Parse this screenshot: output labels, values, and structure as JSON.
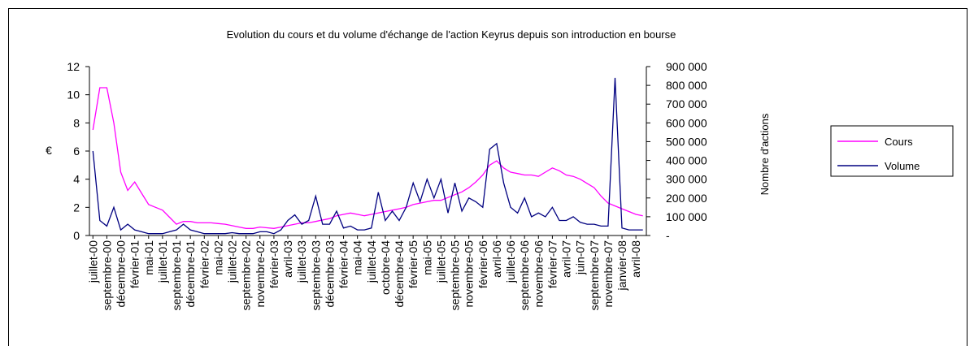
{
  "chart_data": {
    "type": "line",
    "title": "Evolution du cours et du volume d'échange de l'action Keyrus depuis son introduction en bourse",
    "y_label": "€",
    "y2_label": "Nombre d'actions",
    "categories": [
      "juillet-00",
      null,
      "septembre-00",
      null,
      "décembre-00",
      null,
      "février-01",
      null,
      "mai-01",
      null,
      "juillet-01",
      null,
      "septembre-01",
      null,
      "décembre-01",
      null,
      "février-02",
      null,
      "mai-02",
      null,
      "juillet-02",
      null,
      "septembre-02",
      null,
      "novembre-02",
      null,
      "février-03",
      null,
      "avril-03",
      null,
      "juillet-03",
      null,
      "septembre-03",
      null,
      "décembre-03",
      null,
      "février-04",
      null,
      "mai-04",
      null,
      "juillet-04",
      null,
      "octobre-04",
      null,
      "décembre-04",
      null,
      "février-05",
      null,
      "mai-05",
      null,
      "juillet-05",
      null,
      "septembre-05",
      null,
      "novembre-05",
      null,
      "février-06",
      null,
      "avril-06",
      null,
      "juillet-06",
      null,
      "septembre-06",
      null,
      "novembre-06",
      null,
      "février-07",
      null,
      "avril-07",
      null,
      "juin-07",
      null,
      "septembre-07",
      null,
      "novembre-07",
      null,
      "janvier-08",
      null,
      "avril-08",
      null
    ],
    "series": [
      {
        "name": "Cours",
        "color": "#ff00ff",
        "values": [
          7.5,
          10.5,
          10.5,
          8,
          4.5,
          3.2,
          3.8,
          3,
          2.2,
          2,
          1.8,
          1.3,
          0.8,
          1.0,
          1.0,
          0.9,
          0.9,
          0.9,
          0.85,
          0.8,
          0.7,
          0.6,
          0.5,
          0.5,
          0.6,
          0.55,
          0.5,
          0.6,
          0.7,
          0.8,
          0.9,
          0.9,
          1.0,
          1.1,
          1.2,
          1.4,
          1.5,
          1.6,
          1.5,
          1.4,
          1.5,
          1.6,
          1.7,
          1.8,
          1.9,
          2.0,
          2.2,
          2.3,
          2.4,
          2.5,
          2.5,
          2.7,
          2.9,
          3.1,
          3.4,
          3.8,
          4.3,
          5.0,
          5.3,
          4.8,
          4.5,
          4.4,
          4.3,
          4.3,
          4.2,
          4.5,
          4.8,
          4.6,
          4.3,
          4.2,
          4.0,
          3.7,
          3.4,
          2.8,
          2.3,
          2.1,
          1.9,
          1.7,
          1.5,
          1.4
        ]
      },
      {
        "name": "Volume",
        "color": "#000080",
        "axis": "y2",
        "values": [
          450000,
          80000,
          50000,
          150000,
          30000,
          60000,
          30000,
          20000,
          10000,
          10000,
          10000,
          20000,
          30000,
          60000,
          30000,
          20000,
          10000,
          10000,
          10000,
          10000,
          15000,
          10000,
          10000,
          10000,
          20000,
          20000,
          10000,
          30000,
          80000,
          110000,
          60000,
          80000,
          210000,
          60000,
          60000,
          130000,
          40000,
          50000,
          30000,
          30000,
          40000,
          230000,
          80000,
          130000,
          80000,
          150000,
          280000,
          180000,
          300000,
          200000,
          300000,
          120000,
          280000,
          130000,
          200000,
          180000,
          150000,
          460000,
          490000,
          280000,
          150000,
          120000,
          200000,
          100000,
          120000,
          100000,
          150000,
          80000,
          80000,
          100000,
          70000,
          60000,
          60000,
          50000,
          50000,
          840000,
          40000,
          30000,
          30000,
          30000
        ]
      }
    ],
    "ylim": [
      0,
      12
    ],
    "yticks": [
      0,
      2,
      4,
      6,
      8,
      10,
      12
    ],
    "y2lim": [
      0,
      900000
    ],
    "y2ticks": [
      {
        "value": 0,
        "label": "-"
      },
      {
        "value": 100000,
        "label": "100 000"
      },
      {
        "value": 200000,
        "label": "200 000"
      },
      {
        "value": 300000,
        "label": "300 000"
      },
      {
        "value": 400000,
        "label": "400 000"
      },
      {
        "value": 500000,
        "label": "500 000"
      },
      {
        "value": 600000,
        "label": "600 000"
      },
      {
        "value": 700000,
        "label": "700 000"
      },
      {
        "value": 800000,
        "label": "800 000"
      },
      {
        "value": 900000,
        "label": "900 000"
      }
    ],
    "legend": "right",
    "grid": false
  }
}
